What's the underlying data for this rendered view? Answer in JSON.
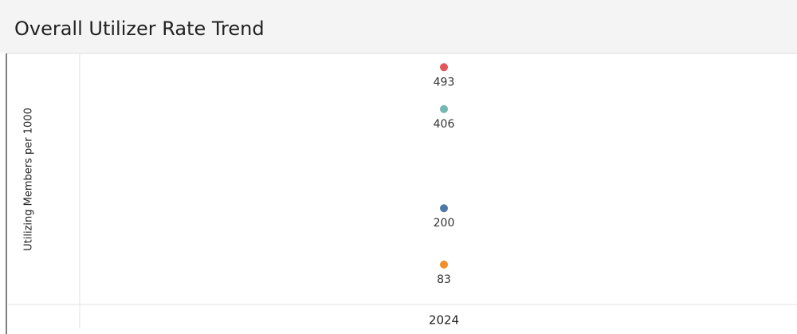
{
  "chart_data": {
    "type": "scatter",
    "title": "Overall Utilizer Rate Trend",
    "y_label": "Utilizing Members per 1000",
    "categories": [
      "2024"
    ],
    "series": [
      {
        "color": "#e15759",
        "values": [
          493
        ]
      },
      {
        "color": "#76b7b2",
        "values": [
          406
        ]
      },
      {
        "color": "#4e79a7",
        "values": [
          200
        ]
      },
      {
        "color": "#f28e2b",
        "values": [
          83
        ]
      }
    ],
    "ylim": [
      0,
      520
    ]
  }
}
